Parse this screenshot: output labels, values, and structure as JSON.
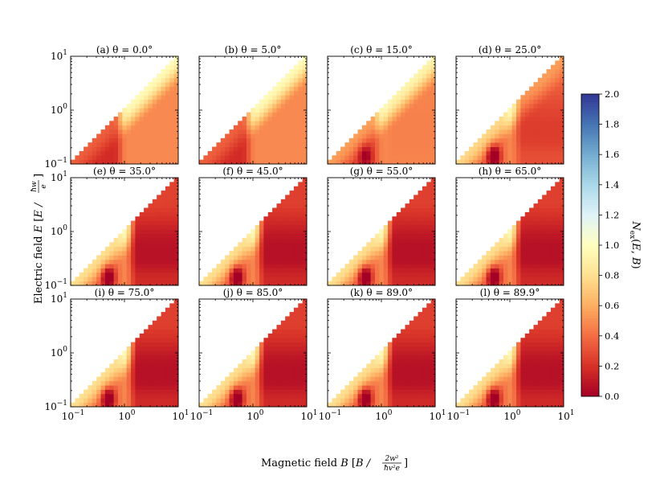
{
  "chart_data": {
    "type": "heatmap",
    "layout": "grid",
    "panels": [
      {
        "title": "(a) θ = 0.0°",
        "theta": 0.0
      },
      {
        "title": "(b) θ = 5.0°",
        "theta": 5.0
      },
      {
        "title": "(c) θ = 15.0°",
        "theta": 15.0
      },
      {
        "title": "(d) θ = 25.0°",
        "theta": 25.0
      },
      {
        "title": "(e) θ = 35.0°",
        "theta": 35.0
      },
      {
        "title": "(f) θ = 45.0°",
        "theta": 45.0
      },
      {
        "title": "(g) θ = 55.0°",
        "theta": 55.0
      },
      {
        "title": "(h) θ = 65.0°",
        "theta": 65.0
      },
      {
        "title": "(i) θ = 75.0°",
        "theta": 75.0
      },
      {
        "title": "(j) θ = 85.0°",
        "theta": 85.0
      },
      {
        "title": "(k) θ = 89.0°",
        "theta": 89.0
      },
      {
        "title": "(l) θ = 89.9°",
        "theta": 89.9
      }
    ],
    "x_axis": {
      "label_prefix": "Magnetic field",
      "label_symbol": "B",
      "label_unit_text": "B / ",
      "unit_numerator": "2w²",
      "unit_denominator": "ħv²e",
      "scale": "log",
      "range": [
        0.1,
        10
      ],
      "ticks": [
        {
          "value": 0.1,
          "mantissa": "10",
          "exp": "−1"
        },
        {
          "value": 1,
          "mantissa": "10",
          "exp": "0"
        },
        {
          "value": 10,
          "mantissa": "10",
          "exp": "1"
        }
      ]
    },
    "y_axis": {
      "label_prefix": "Electric field",
      "label_symbol": "E",
      "label_unit_text": "E / ",
      "unit_numerator": "ħw",
      "unit_denominator": "e",
      "scale": "log",
      "range": [
        0.1,
        10
      ],
      "ticks": [
        {
          "value": 0.1,
          "mantissa": "10",
          "exp": "−1"
        },
        {
          "value": 1,
          "mantissa": "10",
          "exp": "0"
        },
        {
          "value": 10,
          "mantissa": "10",
          "exp": "1"
        }
      ]
    },
    "grid_resolution": 25,
    "colorbar": {
      "label": "Nex(E, B)",
      "label_base": "N",
      "label_sub": "ex",
      "label_args": [
        "E",
        "B"
      ],
      "range": [
        0.0,
        2.0
      ],
      "ticks": [
        "0.0",
        "0.2",
        "0.4",
        "0.6",
        "0.8",
        "1.0",
        "1.2",
        "1.4",
        "1.6",
        "1.8",
        "2.0"
      ],
      "colormap": "RdYlBu",
      "colormap_stops": [
        "#a50026",
        "#d73027",
        "#f46d43",
        "#fdae61",
        "#fee090",
        "#ffffbf",
        "#e0f3f8",
        "#abd9e9",
        "#74add1",
        "#4575b4",
        "#313695"
      ]
    },
    "grid": false
  }
}
